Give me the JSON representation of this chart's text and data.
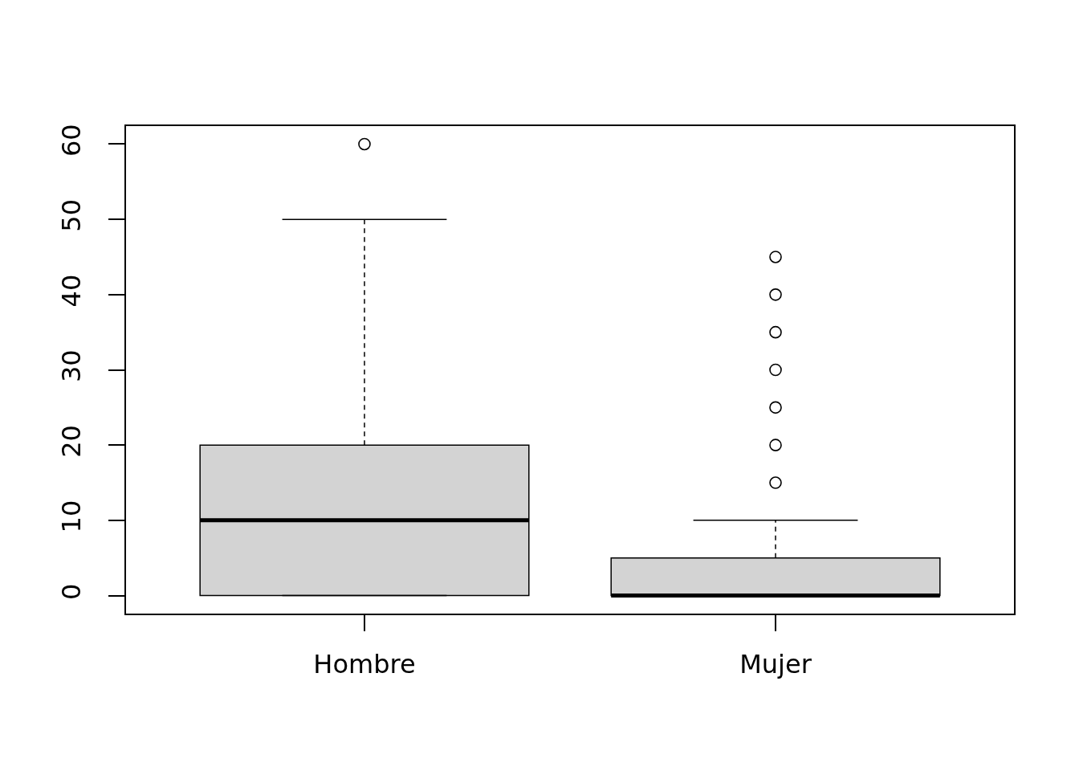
{
  "chart_data": {
    "type": "box",
    "categories": [
      "Hombre",
      "Mujer"
    ],
    "boxes": [
      {
        "low": 0,
        "q1": 0,
        "median": 10,
        "q3": 20,
        "high": 50,
        "outliers": [
          60
        ]
      },
      {
        "low": 0,
        "q1": 0,
        "median": 0,
        "q3": 5,
        "high": 10,
        "outliers": [
          15,
          20,
          25,
          30,
          35,
          40,
          45
        ]
      }
    ],
    "color": "#d3d3d3",
    "ylim": [
      -2.4,
      62.4
    ],
    "yticks": [
      0,
      10,
      20,
      30,
      40,
      50,
      60
    ],
    "marker": "circle"
  }
}
